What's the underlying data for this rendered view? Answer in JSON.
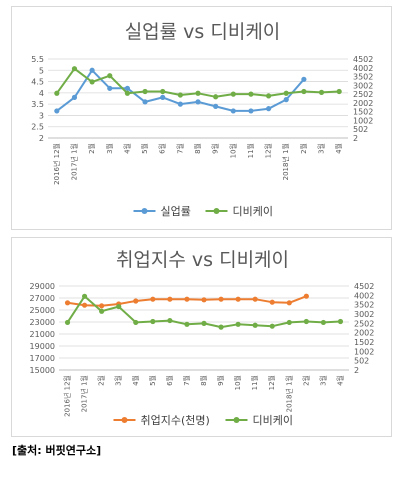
{
  "source": "[출처: 버핏연구소]",
  "colors": {
    "blue": "#5b9bd5",
    "orange": "#ed7d31",
    "green": "#70ad47",
    "grid": "#d9d9d9",
    "text": "#595959"
  },
  "chart_data": [
    {
      "type": "line",
      "title": "실업률 vs 디비케이",
      "categories": [
        "2016년 12월",
        "2017년 1월",
        "2월",
        "3월",
        "4월",
        "5월",
        "6월",
        "7월",
        "8월",
        "9월",
        "10월",
        "11월",
        "12월",
        "2018년 1월",
        "2월",
        "3월",
        "4월"
      ],
      "category_labels": [
        "2016년 12월",
        "2017년 1월",
        "2월",
        "3월",
        "4월",
        "5월",
        "6월",
        "7월",
        "8월",
        "9월",
        "10월",
        "11월",
        "12월",
        "2018년 1월",
        "2월",
        "3월",
        "4월"
      ],
      "left_axis": {
        "min": 2,
        "max": 5.5,
        "ticks": [
          "5.5",
          "5",
          "4.5",
          "4",
          "3.5",
          "3",
          "2.5",
          "2"
        ]
      },
      "right_axis": {
        "min": 2,
        "max": 4502,
        "ticks": [
          "4502",
          "4002",
          "3502",
          "3002",
          "2502",
          "2002",
          "1502",
          "1002",
          "502",
          "2"
        ]
      },
      "grid": true,
      "legend_position": "bottom",
      "series": [
        {
          "name": "실업률",
          "axis": "left",
          "color": "#5b9bd5",
          "values": [
            3.2,
            3.8,
            5.0,
            4.2,
            4.2,
            3.6,
            3.8,
            3.5,
            3.6,
            3.4,
            3.2,
            3.2,
            3.3,
            3.7,
            4.6,
            null,
            null
          ]
        },
        {
          "name": "디비케이",
          "axis": "right",
          "color": "#70ad47",
          "values": [
            2550,
            3950,
            3200,
            3550,
            2550,
            2650,
            2650,
            2450,
            2550,
            2350,
            2500,
            2500,
            2400,
            2550,
            2650,
            2600,
            2650
          ]
        }
      ]
    },
    {
      "type": "line",
      "title": "취업지수 vs 디비케이",
      "categories": [
        "2016년 12월",
        "2017년 1월",
        "2월",
        "3월",
        "4월",
        "5월",
        "6월",
        "7월",
        "8월",
        "9월",
        "10월",
        "11월",
        "12월",
        "2018년 1월",
        "2월",
        "3월",
        "4월"
      ],
      "category_labels": [
        "2016년 12월",
        "2017년 1월",
        "2월",
        "3월",
        "4월",
        "5월",
        "6월",
        "7월",
        "8월",
        "9월",
        "10월",
        "11월",
        "12월",
        "2018년 1월",
        "2월",
        "3월",
        "4월"
      ],
      "left_axis": {
        "min": 15000,
        "max": 29000,
        "ticks": [
          "29000",
          "27000",
          "25000",
          "23000",
          "21000",
          "19000",
          "17000",
          "15000"
        ]
      },
      "right_axis": {
        "min": 2,
        "max": 4502,
        "ticks": [
          "4502",
          "4002",
          "3502",
          "3002",
          "2502",
          "2002",
          "1502",
          "1002",
          "502",
          "2"
        ]
      },
      "grid": true,
      "legend_position": "bottom",
      "series": [
        {
          "name": "취업지수(천명)",
          "axis": "left",
          "color": "#ed7d31",
          "values": [
            26200,
            25800,
            25700,
            26000,
            26500,
            26800,
            26800,
            26800,
            26700,
            26800,
            26800,
            26800,
            26300,
            26200,
            27300,
            null,
            null
          ]
        },
        {
          "name": "디비케이",
          "axis": "right",
          "color": "#70ad47",
          "values": [
            2550,
            3950,
            3150,
            3400,
            2550,
            2600,
            2650,
            2450,
            2500,
            2300,
            2450,
            2400,
            2350,
            2550,
            2600,
            2550,
            2600
          ]
        }
      ]
    }
  ]
}
